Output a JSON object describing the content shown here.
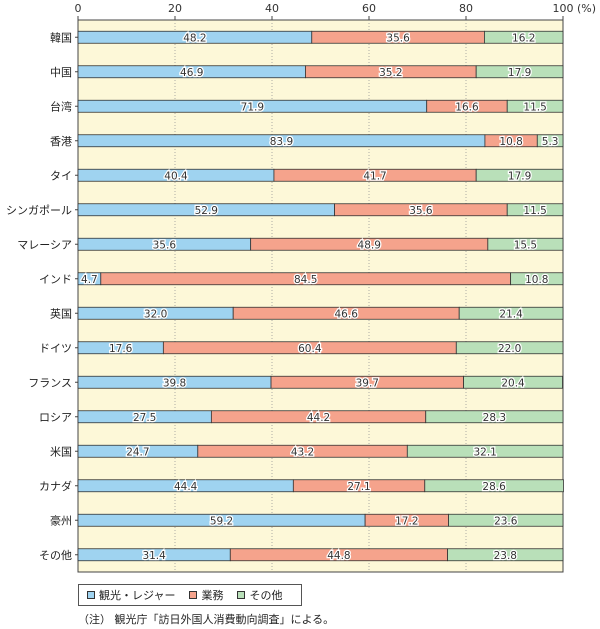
{
  "chart_data": {
    "type": "bar",
    "orientation": "horizontal",
    "stacked": true,
    "categories": [
      "韓国",
      "中国",
      "台湾",
      "香港",
      "タイ",
      "シンガポール",
      "マレーシア",
      "インド",
      "英国",
      "ドイツ",
      "フランス",
      "ロシア",
      "米国",
      "カナダ",
      "豪州",
      "その他"
    ],
    "series": [
      {
        "name": "観光・レジャー",
        "color": "#9fd3f0",
        "values": [
          48.2,
          46.9,
          71.9,
          83.9,
          40.4,
          52.9,
          35.6,
          4.7,
          32.0,
          17.6,
          39.8,
          27.5,
          24.7,
          44.4,
          59.2,
          31.4
        ]
      },
      {
        "name": "業務",
        "color": "#f5a38c",
        "values": [
          35.6,
          35.2,
          16.6,
          10.8,
          41.7,
          35.6,
          48.9,
          84.5,
          46.6,
          60.4,
          39.7,
          44.2,
          43.2,
          27.1,
          17.2,
          44.8
        ]
      },
      {
        "name": "その他",
        "color": "#b9e0b9",
        "values": [
          16.2,
          17.9,
          11.5,
          5.3,
          17.9,
          11.5,
          15.5,
          10.8,
          21.4,
          22.0,
          20.4,
          28.3,
          32.1,
          28.6,
          23.6,
          23.8
        ]
      }
    ],
    "xlim": [
      0,
      100
    ],
    "xticks": [
      "0",
      "20",
      "40",
      "60",
      "80",
      "100"
    ],
    "xunit": "(%)",
    "legend_position": "bottom-left",
    "plot_background": "#fdf8d8",
    "grid": "vertical-dotted"
  },
  "note": "（注） 観光庁「訪日外国人消費動向調査」による。"
}
